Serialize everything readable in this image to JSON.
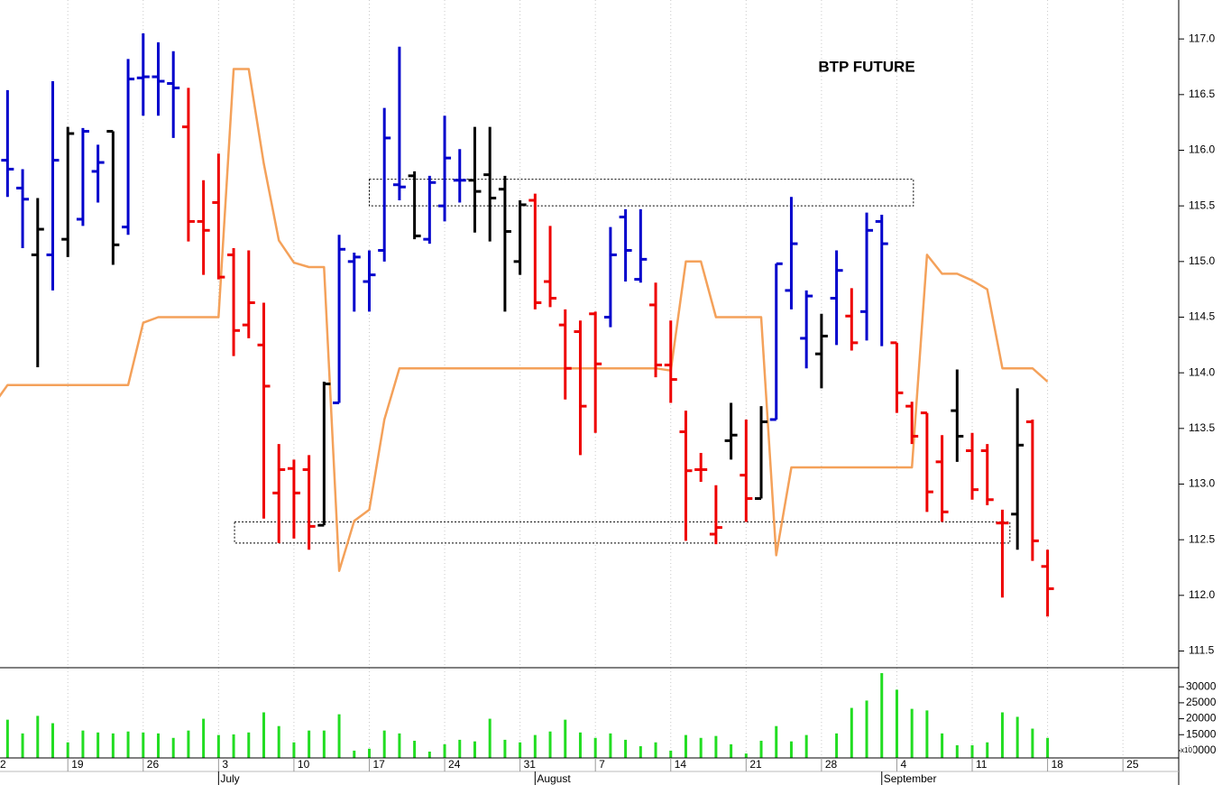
{
  "chart_data": {
    "type": "ohlc",
    "title": "BTP FUTURE",
    "xlim": [
      0.5,
      78.7
    ],
    "xticks": [
      {
        "value": 0,
        "label": "2"
      },
      {
        "value": 5,
        "label": "19"
      },
      {
        "value": 10,
        "label": "26"
      },
      {
        "value": 15,
        "label": "3"
      },
      {
        "value": 20,
        "label": "10"
      },
      {
        "value": 25,
        "label": "17"
      },
      {
        "value": 30,
        "label": "24"
      },
      {
        "value": 35,
        "label": "31"
      },
      {
        "value": 40,
        "label": "7"
      },
      {
        "value": 45,
        "label": "14"
      },
      {
        "value": 50,
        "label": "21"
      },
      {
        "value": 55,
        "label": "28"
      },
      {
        "value": 60,
        "label": "4"
      },
      {
        "value": 65,
        "label": "11"
      },
      {
        "value": 70,
        "label": "18"
      },
      {
        "value": 75,
        "label": "25"
      }
    ],
    "months": [
      {
        "value": 15,
        "label": "July"
      },
      {
        "value": 36,
        "label": "August"
      },
      {
        "value": 59,
        "label": "September"
      }
    ],
    "ylim": [
      111.35,
      117.35
    ],
    "yticks": [
      {
        "value": 111.5,
        "label": "111.5"
      },
      {
        "value": 112,
        "label": "112.0"
      },
      {
        "value": 112.5,
        "label": "112.5"
      },
      {
        "value": 113,
        "label": "113.0"
      },
      {
        "value": 113.5,
        "label": "113.5"
      },
      {
        "value": 114,
        "label": "114.0"
      },
      {
        "value": 114.5,
        "label": "114.5"
      },
      {
        "value": 115,
        "label": "115.0"
      },
      {
        "value": 115.5,
        "label": "115.5"
      },
      {
        "value": 116,
        "label": "116.0"
      },
      {
        "value": 116.5,
        "label": "116.5"
      },
      {
        "value": 117,
        "label": "117.0"
      }
    ],
    "grid": true,
    "x": [
      1,
      2,
      3,
      4,
      5,
      6,
      7,
      8,
      9,
      10,
      11,
      12,
      13,
      14,
      15,
      16,
      17,
      18,
      19,
      20,
      21,
      22,
      23,
      24,
      25,
      26,
      27,
      28,
      29,
      30,
      31,
      32,
      33,
      34,
      35,
      36,
      37,
      38,
      39,
      40,
      41,
      42,
      43,
      44,
      45,
      46,
      47,
      48,
      49,
      50,
      51,
      52,
      53,
      54,
      55,
      56,
      57,
      58,
      59,
      60,
      61,
      62,
      63,
      64,
      65,
      66,
      67,
      68,
      69,
      70
    ],
    "open": [
      115.91,
      115.66,
      115.06,
      115.06,
      115.2,
      115.38,
      115.81,
      116.17,
      115.31,
      116.65,
      116.66,
      116.6,
      116.21,
      115.36,
      115.53,
      115.06,
      114.43,
      114.25,
      112.92,
      113.14,
      113.13,
      112.63,
      113.73,
      115.0,
      114.82,
      115.1,
      115.69,
      115.77,
      115.2,
      115.5,
      115.73,
      115.73,
      115.78,
      115.65,
      115.0,
      115.55,
      114.82,
      114.43,
      114.37,
      114.53,
      114.5,
      115.4,
      114.84,
      114.61,
      114.07,
      113.47,
      113.13,
      112.55,
      113.39,
      113.08,
      112.87,
      113.58,
      114.74,
      114.31,
      114.17,
      114.67,
      114.51,
      114.55,
      115.36,
      114.27,
      113.7,
      113.64,
      113.2,
      113.66,
      113.3,
      113.3,
      112.65,
      112.73,
      113.56,
      112.26
    ],
    "high": [
      116.54,
      115.83,
      115.57,
      116.62,
      116.21,
      116.2,
      116.05,
      116.17,
      116.82,
      117.05,
      116.97,
      116.89,
      116.56,
      115.73,
      115.97,
      115.12,
      115.1,
      114.63,
      113.36,
      113.22,
      113.26,
      113.92,
      115.24,
      115.08,
      115.1,
      116.38,
      116.93,
      115.81,
      115.77,
      116.31,
      116.01,
      116.21,
      116.21,
      115.77,
      115.55,
      115.61,
      115.32,
      114.57,
      114.47,
      114.55,
      115.31,
      115.47,
      115.47,
      114.81,
      114.47,
      113.66,
      113.28,
      112.99,
      113.73,
      113.58,
      113.7,
      114.98,
      115.58,
      114.74,
      114.53,
      115.1,
      114.76,
      115.44,
      115.42,
      114.27,
      113.74,
      113.64,
      113.44,
      114.03,
      113.46,
      113.36,
      112.77,
      113.86,
      113.58,
      112.41
    ],
    "low": [
      115.58,
      115.12,
      114.05,
      114.74,
      115.04,
      115.32,
      115.53,
      114.97,
      115.24,
      116.31,
      116.31,
      116.11,
      115.18,
      114.88,
      114.84,
      114.15,
      114.31,
      112.69,
      112.47,
      112.51,
      112.41,
      112.63,
      113.73,
      114.55,
      114.55,
      115.0,
      115.55,
      115.2,
      115.16,
      115.36,
      115.53,
      115.26,
      115.18,
      114.55,
      114.88,
      114.57,
      114.59,
      113.76,
      113.26,
      113.46,
      114.41,
      114.82,
      114.81,
      113.96,
      113.73,
      112.49,
      113.02,
      112.46,
      113.22,
      112.66,
      112.87,
      113.58,
      114.57,
      114.04,
      113.86,
      114.25,
      114.2,
      114.29,
      114.24,
      113.64,
      113.36,
      112.75,
      112.66,
      113.2,
      112.86,
      112.81,
      111.98,
      112.41,
      112.31,
      111.81
    ],
    "close": [
      115.83,
      115.56,
      115.29,
      115.91,
      116.15,
      116.17,
      115.89,
      115.15,
      116.64,
      116.66,
      116.62,
      116.56,
      115.36,
      115.28,
      114.86,
      114.38,
      114.63,
      113.88,
      113.13,
      112.92,
      112.62,
      113.9,
      115.11,
      115.04,
      114.88,
      116.11,
      115.67,
      115.23,
      115.71,
      115.93,
      115.73,
      115.63,
      115.57,
      115.27,
      115.51,
      114.63,
      114.67,
      114.04,
      113.7,
      114.08,
      115.06,
      115.1,
      115.02,
      114.07,
      113.94,
      113.12,
      113.13,
      112.61,
      113.44,
      112.87,
      113.56,
      114.98,
      115.16,
      114.69,
      114.33,
      114.92,
      114.27,
      115.28,
      115.16,
      113.82,
      113.43,
      112.93,
      112.75,
      113.43,
      112.95,
      112.86,
      112.65,
      113.35,
      112.49,
      112.06
    ],
    "bar_colors": [
      "#0000cc",
      "#0000cc",
      "#000000",
      "#0000cc",
      "#000000",
      "#0000cc",
      "#0000cc",
      "#000000",
      "#0000cc",
      "#0000cc",
      "#0000cc",
      "#0000cc",
      "#ee0000",
      "#ee0000",
      "#ee0000",
      "#ee0000",
      "#ee0000",
      "#ee0000",
      "#ee0000",
      "#ee0000",
      "#ee0000",
      "#000000",
      "#0000cc",
      "#0000cc",
      "#0000cc",
      "#0000cc",
      "#0000cc",
      "#000000",
      "#0000cc",
      "#0000cc",
      "#0000cc",
      "#000000",
      "#000000",
      "#000000",
      "#000000",
      "#ee0000",
      "#ee0000",
      "#ee0000",
      "#ee0000",
      "#ee0000",
      "#0000cc",
      "#0000cc",
      "#0000cc",
      "#ee0000",
      "#ee0000",
      "#ee0000",
      "#ee0000",
      "#ee0000",
      "#000000",
      "#ee0000",
      "#000000",
      "#0000cc",
      "#0000cc",
      "#0000cc",
      "#000000",
      "#0000cc",
      "#ee0000",
      "#0000cc",
      "#0000cc",
      "#ee0000",
      "#ee0000",
      "#ee0000",
      "#ee0000",
      "#000000",
      "#ee0000",
      "#ee0000",
      "#ee0000",
      "#000000",
      "#ee0000",
      "#ee0000"
    ],
    "line": {
      "color": "#f4a15a",
      "x": [
        0,
        1,
        2,
        3,
        4,
        5,
        6,
        7,
        8,
        9,
        10,
        11,
        12,
        13,
        14,
        15,
        16,
        17,
        18,
        19,
        20,
        21,
        22,
        23,
        24,
        25,
        26,
        27,
        28,
        29,
        30,
        31,
        32,
        33,
        34,
        35,
        36,
        37,
        38,
        39,
        40,
        41,
        42,
        43,
        44,
        45,
        46,
        47,
        48,
        49,
        50,
        51,
        52,
        53,
        54,
        55,
        56,
        57,
        58,
        59,
        60,
        61,
        62,
        63,
        64,
        65,
        66,
        67,
        68,
        69,
        70
      ],
      "values": [
        113.7,
        113.89,
        113.89,
        113.89,
        113.89,
        113.89,
        113.89,
        113.89,
        113.89,
        113.89,
        114.45,
        114.5,
        114.5,
        114.5,
        114.5,
        114.5,
        116.73,
        116.73,
        115.88,
        115.19,
        114.99,
        114.95,
        114.95,
        112.22,
        112.67,
        112.77,
        113.58,
        114.04,
        114.04,
        114.04,
        114.04,
        114.04,
        114.04,
        114.04,
        114.04,
        114.04,
        114.04,
        114.04,
        114.04,
        114.04,
        114.04,
        114.04,
        114.04,
        114.04,
        114.04,
        114.02,
        115.0,
        115.0,
        114.5,
        114.5,
        114.5,
        114.5,
        112.36,
        113.15,
        113.15,
        113.15,
        113.15,
        113.15,
        113.15,
        113.15,
        113.15,
        113.15,
        115.06,
        114.89,
        114.89,
        114.83,
        114.75,
        114.04,
        114.04,
        114.04,
        113.92
      ]
    },
    "zones": [
      {
        "x": [
          25,
          61.1
        ],
        "y": [
          115.5,
          115.74
        ]
      },
      {
        "x": [
          16.06,
          67.5
        ],
        "y": [
          112.47,
          112.66
        ]
      }
    ],
    "volume": {
      "color": "#22dd22",
      "values": [
        19700,
        15400,
        20900,
        18600,
        12600,
        16300,
        15700,
        15400,
        16000,
        15700,
        15400,
        14000,
        16300,
        20000,
        14900,
        15100,
        15700,
        22000,
        17700,
        12600,
        16300,
        16300,
        21400,
        10000,
        10600,
        16300,
        15400,
        13100,
        9700,
        12000,
        13400,
        12900,
        20000,
        13400,
        12600,
        14900,
        16000,
        19700,
        15700,
        14000,
        15400,
        13400,
        11400,
        12600,
        10000,
        14900,
        14000,
        14600,
        12000,
        9100,
        13100,
        17700,
        12900,
        14900,
        null,
        15400,
        23400,
        25700,
        34300,
        29100,
        23100,
        22600,
        15400,
        11700,
        11700,
        12600,
        22000,
        20600,
        16900,
        14000
      ],
      "ylim": [
        7714,
        36000
      ],
      "yticks": [
        10000,
        15000,
        20000,
        25000,
        30000
      ],
      "unit_label": "x10"
    }
  }
}
